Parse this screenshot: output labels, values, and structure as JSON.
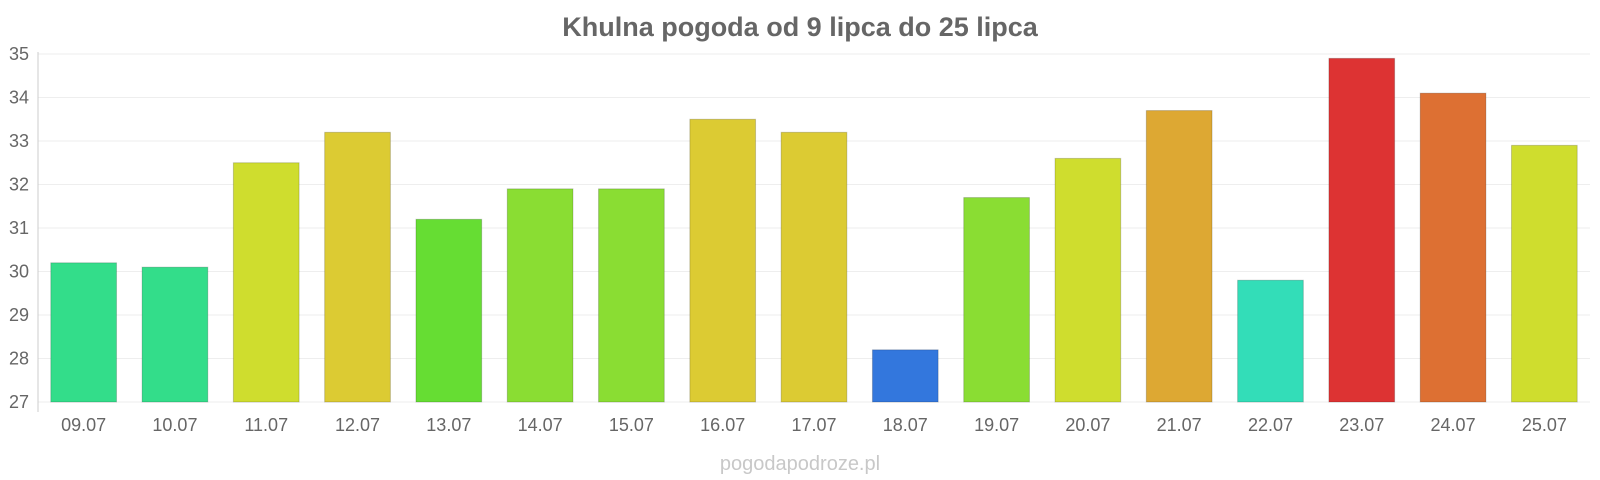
{
  "chart_data": {
    "type": "bar",
    "title": "Khulna pogoda od 9 lipca do 25 lipca",
    "xlabel": "",
    "ylabel": "",
    "categories": [
      "09.07",
      "10.07",
      "11.07",
      "12.07",
      "13.07",
      "14.07",
      "15.07",
      "16.07",
      "17.07",
      "18.07",
      "19.07",
      "20.07",
      "21.07",
      "22.07",
      "23.07",
      "24.07",
      "25.07"
    ],
    "values": [
      30.2,
      30.1,
      32.5,
      33.2,
      31.2,
      31.9,
      31.9,
      33.5,
      33.2,
      28.2,
      31.7,
      32.6,
      33.7,
      29.8,
      34.9,
      34.1,
      32.9
    ],
    "colors": [
      "#33dd8a",
      "#33dd8a",
      "#cfdd2e",
      "#dccb33",
      "#66dd33",
      "#8add33",
      "#8add33",
      "#dccb33",
      "#dccb33",
      "#3377dd",
      "#8add33",
      "#cfdd2e",
      "#dda833",
      "#33ddb8",
      "#dd3333",
      "#dd7033",
      "#cfdd2e"
    ],
    "ylim": [
      27,
      35
    ],
    "yticks": [
      "27",
      "28",
      "29",
      "30",
      "31",
      "32",
      "33",
      "34",
      "35"
    ],
    "grid": true,
    "legend": "none"
  },
  "watermark": "pogodapodroze.pl"
}
